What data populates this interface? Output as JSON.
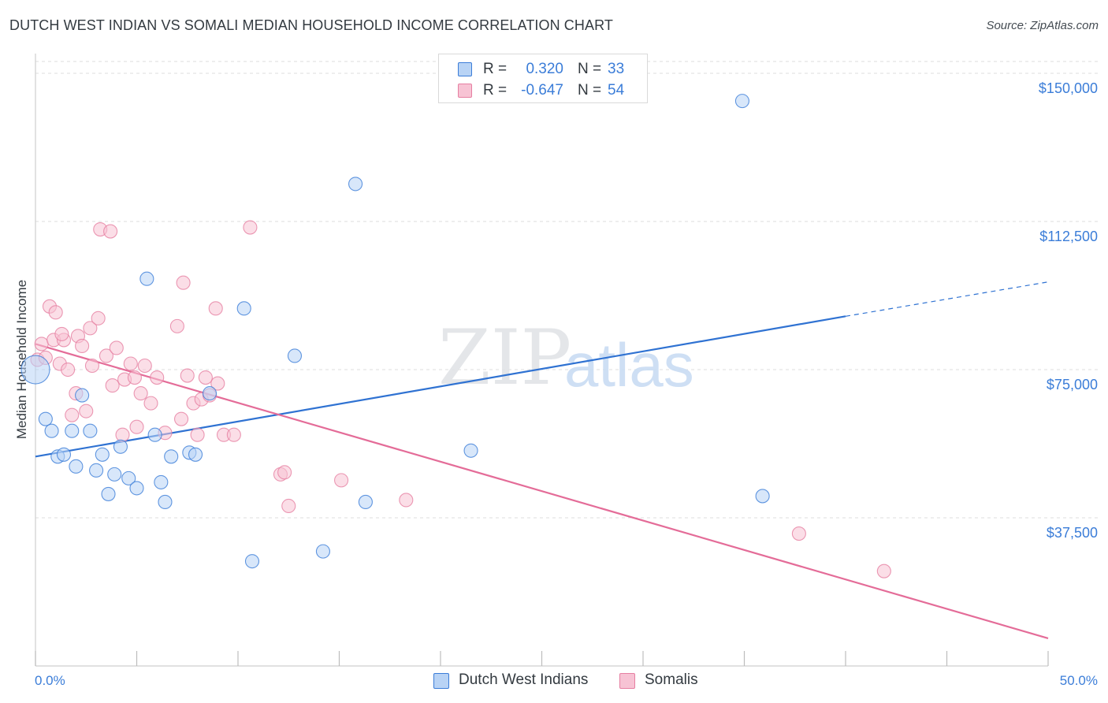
{
  "header": {
    "title": "DUTCH WEST INDIAN VS SOMALI MEDIAN HOUSEHOLD INCOME CORRELATION CHART",
    "source": "Source: ZipAtlas.com"
  },
  "watermark": {
    "zip": "ZIP",
    "atlas": "atlas"
  },
  "colors": {
    "blue": "#3b7dd8",
    "blue_fill": "#b8d3f5",
    "blue_line": "#2f72d2",
    "pink": "#e67fa1",
    "pink_fill": "#f7c3d4",
    "pink_line": "#e46c98",
    "grid": "#dcdcdc",
    "axis_text": "#3b7dd8"
  },
  "legend": {
    "rows": [
      {
        "r_label": "R =",
        "r_value": "0.320",
        "n_label": "N =",
        "n_value": "33"
      },
      {
        "r_label": "R =",
        "r_value": "-0.647",
        "n_label": "N =",
        "n_value": "54"
      }
    ]
  },
  "bottom_legend": {
    "items": [
      {
        "label": "Dutch West Indians"
      },
      {
        "label": "Somalis"
      }
    ]
  },
  "chart_data": {
    "type": "scatter",
    "title": "DUTCH WEST INDIAN VS SOMALI MEDIAN HOUSEHOLD INCOME CORRELATION CHART",
    "ylabel": "Median Household Income",
    "xlabel": "",
    "xlim": [
      0,
      50
    ],
    "ylim": [
      0,
      153000
    ],
    "x_tick_labels": [
      "0.0%",
      "50.0%"
    ],
    "y_ticks": [
      37500,
      75000,
      112500,
      150000
    ],
    "y_tick_labels": [
      "$37,500",
      "$75,000",
      "$112,500",
      "$150,000"
    ],
    "grid": true,
    "legend_position": "top-center",
    "series": [
      {
        "name": "Dutch West Indians",
        "color": "#3b7dd8",
        "r": 0.32,
        "n": 33,
        "trend": {
          "x0": 0,
          "y0": 53000,
          "x1": 40,
          "y1": 88500,
          "dashed_to_x": 50,
          "dashed_to_y": 97200
        },
        "points": [
          [
            0.0,
            75000
          ],
          [
            0.5,
            62500
          ],
          [
            0.8,
            59500
          ],
          [
            1.1,
            53000
          ],
          [
            1.4,
            53500
          ],
          [
            1.8,
            59500
          ],
          [
            2.0,
            50500
          ],
          [
            2.3,
            68500
          ],
          [
            2.7,
            59500
          ],
          [
            3.0,
            49500
          ],
          [
            3.3,
            53500
          ],
          [
            3.6,
            43500
          ],
          [
            3.9,
            48500
          ],
          [
            4.2,
            55500
          ],
          [
            4.6,
            47500
          ],
          [
            5.0,
            45000
          ],
          [
            5.5,
            98000
          ],
          [
            5.9,
            58500
          ],
          [
            6.2,
            46500
          ],
          [
            6.4,
            41500
          ],
          [
            6.7,
            53000
          ],
          [
            7.6,
            54000
          ],
          [
            7.9,
            53500
          ],
          [
            8.6,
            69000
          ],
          [
            10.3,
            90500
          ],
          [
            10.7,
            26500
          ],
          [
            12.8,
            78500
          ],
          [
            14.2,
            29000
          ],
          [
            15.8,
            122000
          ],
          [
            16.3,
            41500
          ],
          [
            21.5,
            54500
          ],
          [
            34.9,
            143000
          ],
          [
            35.9,
            43000
          ]
        ]
      },
      {
        "name": "Somalis",
        "color": "#e67fa1",
        "r": -0.647,
        "n": 54,
        "trend": {
          "x0": 0,
          "y0": 81500,
          "x1": 50,
          "y1": 7000
        },
        "points": [
          [
            0.1,
            77500
          ],
          [
            0.3,
            81500
          ],
          [
            0.5,
            78000
          ],
          [
            0.7,
            91000
          ],
          [
            0.9,
            82500
          ],
          [
            1.0,
            89500
          ],
          [
            1.2,
            76500
          ],
          [
            1.4,
            82500
          ],
          [
            1.6,
            75000
          ],
          [
            1.8,
            63500
          ],
          [
            2.0,
            69000
          ],
          [
            2.1,
            83500
          ],
          [
            2.3,
            81000
          ],
          [
            2.5,
            64500
          ],
          [
            2.7,
            85500
          ],
          [
            2.8,
            76000
          ],
          [
            3.1,
            88000
          ],
          [
            3.2,
            110500
          ],
          [
            3.5,
            78500
          ],
          [
            3.7,
            110000
          ],
          [
            3.8,
            71000
          ],
          [
            4.0,
            80500
          ],
          [
            4.3,
            58500
          ],
          [
            4.4,
            72500
          ],
          [
            4.7,
            76500
          ],
          [
            4.9,
            73000
          ],
          [
            5.0,
            60500
          ],
          [
            5.2,
            69000
          ],
          [
            5.4,
            76000
          ],
          [
            5.7,
            66500
          ],
          [
            6.0,
            73000
          ],
          [
            6.4,
            59000
          ],
          [
            7.0,
            86000
          ],
          [
            7.2,
            62500
          ],
          [
            7.3,
            97000
          ],
          [
            7.5,
            73500
          ],
          [
            7.8,
            66500
          ],
          [
            8.0,
            58500
          ],
          [
            8.2,
            67500
          ],
          [
            8.4,
            73000
          ],
          [
            9.0,
            71500
          ],
          [
            8.9,
            90500
          ],
          [
            9.3,
            58500
          ],
          [
            9.8,
            58500
          ],
          [
            10.6,
            111000
          ],
          [
            12.1,
            48500
          ],
          [
            12.3,
            49000
          ],
          [
            12.5,
            40500
          ],
          [
            15.1,
            47000
          ],
          [
            18.3,
            42000
          ],
          [
            37.7,
            33500
          ],
          [
            41.9,
            24000
          ],
          [
            8.6,
            68500
          ],
          [
            1.3,
            84000
          ]
        ]
      }
    ]
  }
}
